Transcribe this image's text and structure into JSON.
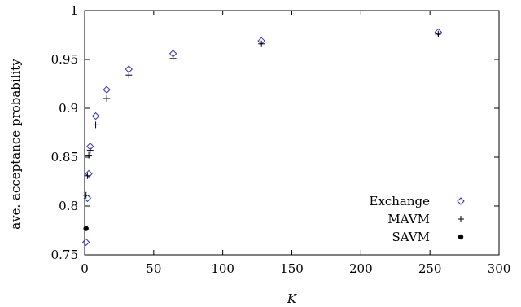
{
  "chart_data": {
    "type": "scatter",
    "title": "",
    "xlabel": "K",
    "ylabel": "ave. acceptance probability",
    "xlim": [
      0,
      300
    ],
    "ylim": [
      0.75,
      1
    ],
    "x_ticks": [
      "0",
      "50",
      "100",
      "150",
      "200",
      "250",
      "300"
    ],
    "y_ticks": [
      "0.75",
      "0.8",
      "0.85",
      "0.9",
      "0.95",
      "1"
    ],
    "grid": false,
    "legend_position": "bottom-right",
    "series": [
      {
        "name": "Exchange",
        "marker": "diamond",
        "color": "#3030c8",
        "x": [
          1,
          2,
          3,
          4,
          8,
          16,
          32,
          64,
          128,
          256
        ],
        "y": [
          0.763,
          0.808,
          0.833,
          0.861,
          0.892,
          0.919,
          0.94,
          0.956,
          0.969,
          0.978
        ]
      },
      {
        "name": "MAVM",
        "marker": "plus",
        "color": "#000000",
        "x": [
          1,
          2,
          3,
          4,
          8,
          16,
          32,
          64,
          128,
          256
        ],
        "y": [
          0.811,
          0.831,
          0.852,
          0.857,
          0.883,
          0.91,
          0.934,
          0.951,
          0.966,
          0.976
        ]
      },
      {
        "name": "SAVM",
        "marker": "dot",
        "color": "#000000",
        "x": [
          1
        ],
        "y": [
          0.777
        ]
      }
    ]
  }
}
